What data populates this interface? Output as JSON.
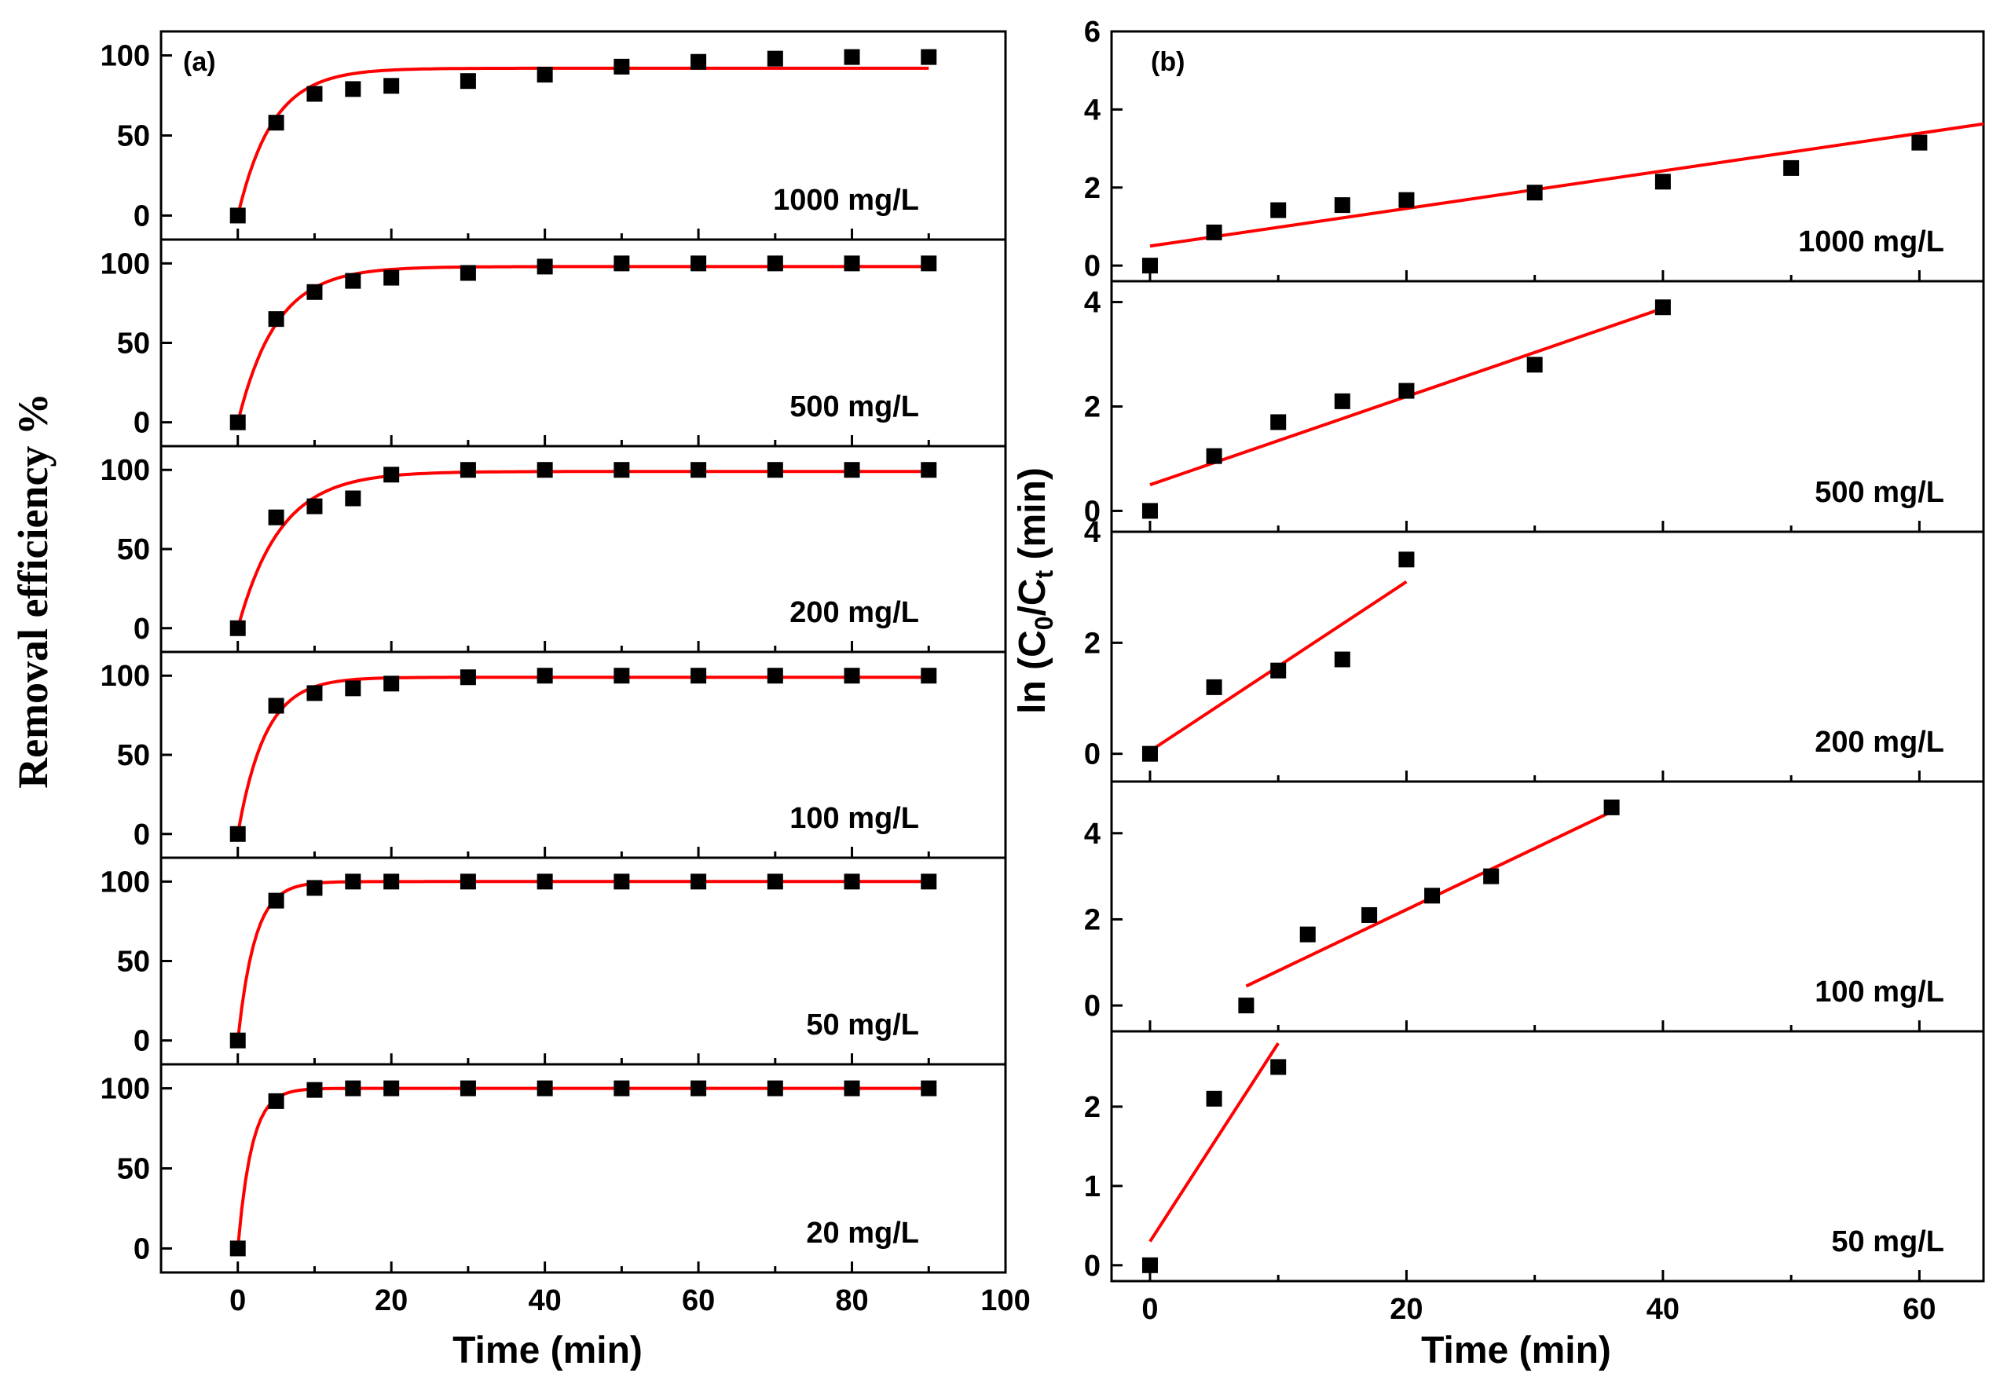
{
  "colors": {
    "fit": "#ff0000",
    "marker": "#000000",
    "axis": "#000000"
  },
  "chart_data": [
    {
      "id": "a",
      "type": "scatter",
      "panel_label": "(a)",
      "xlabel": "Time (min)",
      "ylabel": "Removal efficiency %",
      "xlim": [
        -10,
        100
      ],
      "xticks": [
        0,
        20,
        40,
        60,
        80,
        100
      ],
      "x_minor_ticks": [
        10,
        30,
        50,
        70,
        90
      ],
      "ylim": [
        -15,
        115
      ],
      "yticks": [
        0,
        50,
        100
      ],
      "fit_model": "exponential",
      "subplots": [
        {
          "label": "1000 mg/L",
          "x": [
            0,
            5,
            10,
            15,
            20,
            30,
            40,
            50,
            60,
            70,
            80,
            90
          ],
          "y": [
            0,
            58,
            76,
            79,
            81,
            84,
            88,
            93,
            96,
            98,
            99,
            99
          ],
          "fit": {
            "qe": 92,
            "k": 0.22,
            "x_end": 90
          }
        },
        {
          "label": "500 mg/L",
          "x": [
            0,
            5,
            10,
            15,
            20,
            30,
            40,
            50,
            60,
            70,
            80,
            90
          ],
          "y": [
            0,
            65,
            82,
            89,
            91,
            94,
            98,
            100,
            100,
            100,
            100,
            100
          ],
          "fit": {
            "qe": 98,
            "k": 0.2,
            "x_end": 90
          }
        },
        {
          "label": "200 mg/L",
          "x": [
            0,
            5,
            10,
            15,
            20,
            30,
            40,
            50,
            60,
            70,
            80,
            90
          ],
          "y": [
            0,
            70,
            77,
            82,
            97,
            100,
            100,
            100,
            100,
            100,
            100,
            100
          ],
          "fit": {
            "qe": 99,
            "k": 0.18,
            "x_end": 90
          }
        },
        {
          "label": "100 mg/L",
          "x": [
            0,
            5,
            10,
            15,
            20,
            30,
            40,
            50,
            60,
            70,
            80,
            90
          ],
          "y": [
            0,
            81,
            89,
            92,
            95,
            99,
            100,
            100,
            100,
            100,
            100,
            100
          ],
          "fit": {
            "qe": 99,
            "k": 0.28,
            "x_end": 90
          }
        },
        {
          "label": "50 mg/L",
          "x": [
            0,
            5,
            10,
            15,
            20,
            30,
            40,
            50,
            60,
            70,
            80,
            90
          ],
          "y": [
            0,
            88,
            96,
            100,
            100,
            100,
            100,
            100,
            100,
            100,
            100,
            100
          ],
          "fit": {
            "qe": 100,
            "k": 0.45,
            "x_end": 90
          }
        },
        {
          "label": "20 mg/L",
          "x": [
            0,
            5,
            10,
            15,
            20,
            30,
            40,
            50,
            60,
            70,
            80,
            90
          ],
          "y": [
            0,
            92,
            99,
            100,
            100,
            100,
            100,
            100,
            100,
            100,
            100,
            100
          ],
          "fit": {
            "qe": 100,
            "k": 0.55,
            "x_end": 90
          }
        }
      ]
    },
    {
      "id": "b",
      "type": "scatter",
      "panel_label": "(b)",
      "xlabel": "Time (min)",
      "ylabel_parts": {
        "pre": "ln (C",
        "sub1": "0",
        "mid": "/C",
        "sub2": "t",
        "post": " (min)"
      },
      "xlim": [
        -3,
        65
      ],
      "xticks": [
        0,
        20,
        40,
        60
      ],
      "x_minor_ticks": [
        10,
        30,
        50
      ],
      "fit_model": "linear",
      "subplots": [
        {
          "label": "1000 mg/L",
          "ylim": [
            -0.4,
            6
          ],
          "yticks": [
            0,
            2,
            4,
            6
          ],
          "x": [
            0,
            5,
            10,
            15,
            20,
            30,
            40,
            50,
            60
          ],
          "y": [
            0,
            0.85,
            1.42,
            1.55,
            1.68,
            1.87,
            2.15,
            2.5,
            3.15
          ],
          "fit": {
            "x0": 0,
            "y0": 0.5,
            "x1": 65,
            "y1": 3.63
          }
        },
        {
          "label": "500 mg/L",
          "ylim": [
            -0.4,
            4.4
          ],
          "yticks": [
            0,
            2,
            4
          ],
          "x": [
            0,
            5,
            10,
            15,
            20,
            30,
            40
          ],
          "y": [
            0,
            1.05,
            1.7,
            2.1,
            2.3,
            2.8,
            3.9
          ],
          "fit": {
            "x0": 0,
            "y0": 0.5,
            "x1": 40,
            "y1": 3.88
          }
        },
        {
          "label": "200 mg/L",
          "ylim": [
            -0.5,
            4
          ],
          "yticks": [
            0,
            2,
            4
          ],
          "x": [
            0,
            5,
            10,
            15,
            20
          ],
          "y": [
            0,
            1.2,
            1.5,
            1.7,
            3.5
          ],
          "fit": {
            "x0": 0,
            "y0": 0.05,
            "x1": 20,
            "y1": 3.1
          }
        },
        {
          "label": "100 mg/L",
          "ylim": [
            -0.6,
            5.2
          ],
          "yticks": [
            0,
            2,
            4
          ],
          "x": [
            7.5,
            12.3,
            17.1,
            22,
            26.6,
            36
          ],
          "y": [
            0,
            1.65,
            2.1,
            2.55,
            3.0,
            4.6
          ],
          "fit": {
            "x0": 7.5,
            "y0": 0.45,
            "x1": 36,
            "y1": 4.5
          }
        },
        {
          "label": "50 mg/L",
          "ylim": [
            -0.2,
            2.95
          ],
          "yticks": [
            0,
            1,
            2
          ],
          "x": [
            0,
            5,
            10
          ],
          "y": [
            0,
            2.1,
            2.5
          ],
          "fit": {
            "x0": 0,
            "y0": 0.3,
            "x1": 10,
            "y1": 2.8
          }
        }
      ]
    }
  ]
}
